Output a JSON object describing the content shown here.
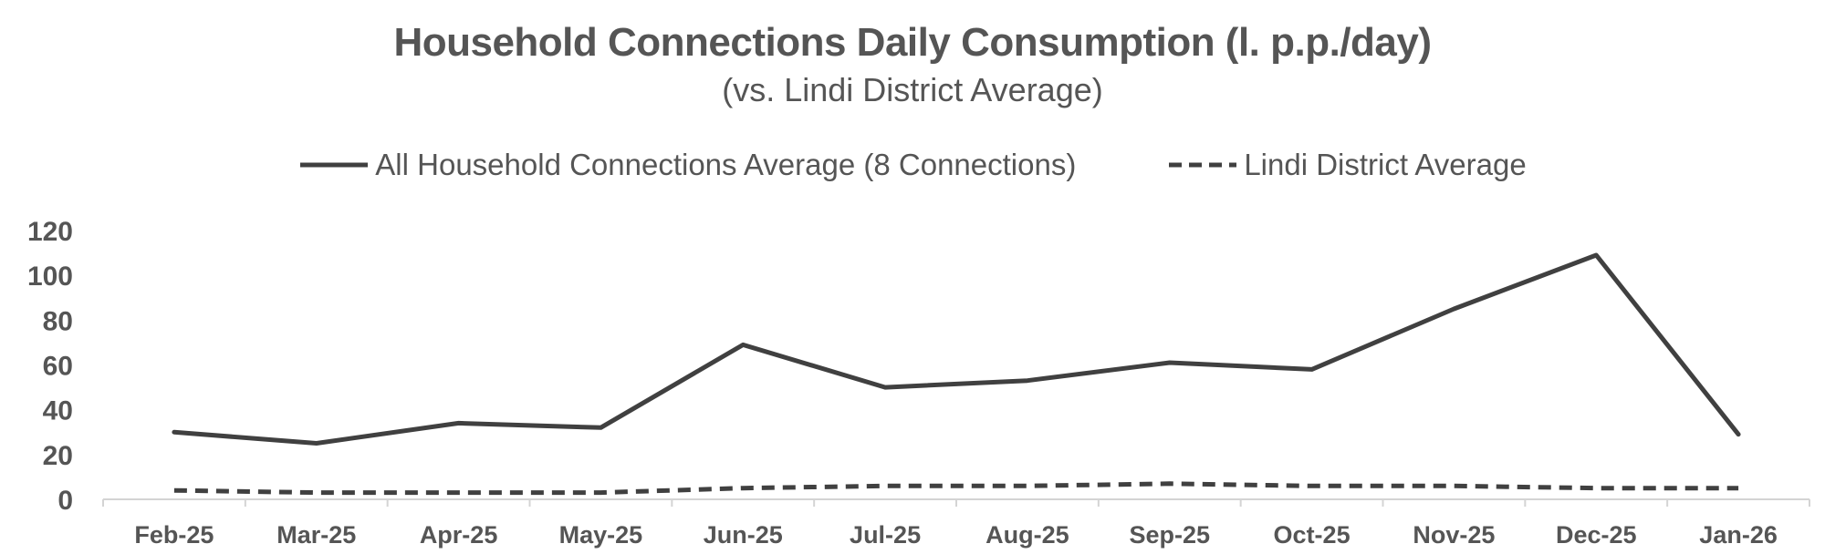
{
  "chart_data": {
    "type": "line",
    "title": "Household Connections Daily Consumption (l. p.p./day)",
    "subtitle": "(vs. Lindi District Average)",
    "categories": [
      "Feb-25",
      "Mar-25",
      "Apr-25",
      "May-25",
      "Jun-25",
      "Jul-25",
      "Aug-25",
      "Sep-25",
      "Oct-25",
      "Nov-25",
      "Dec-25",
      "Jan-26"
    ],
    "series": [
      {
        "name": "All Household Connections Average (8 Connections)",
        "style": "solid",
        "color": "#404040",
        "values": [
          30,
          25,
          34,
          32,
          69,
          50,
          53,
          61,
          58,
          85,
          109,
          29
        ]
      },
      {
        "name": "Lindi District Average",
        "style": "dashed",
        "color": "#404040",
        "values": [
          4,
          3,
          3,
          3,
          5,
          6,
          6,
          7,
          6,
          6,
          5,
          5
        ]
      }
    ],
    "ylim": [
      0,
      120
    ],
    "yticks": [
      0,
      20,
      40,
      60,
      80,
      100,
      120
    ],
    "xlabel": "",
    "ylabel": "",
    "grid": false,
    "legend_position": "top-center"
  }
}
